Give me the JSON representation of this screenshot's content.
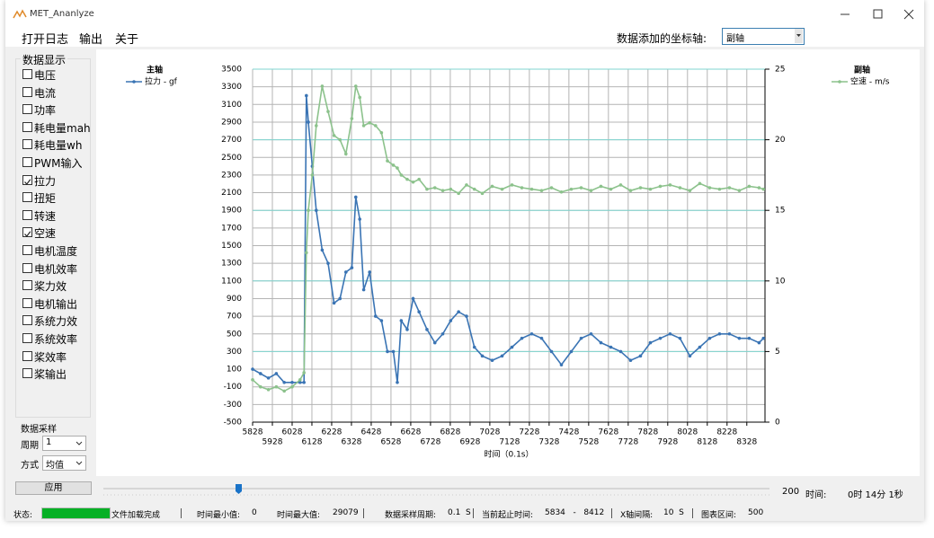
{
  "window": {
    "title": "MET_Ananlyze"
  },
  "menu": [
    "打开日志",
    "输出",
    "关于"
  ],
  "axis_selector": {
    "label": "数据添加的坐标轴:",
    "value": "副轴"
  },
  "sidebar": {
    "title": "数据显示",
    "items": [
      {
        "label": "电压",
        "checked": false
      },
      {
        "label": "电流",
        "checked": false
      },
      {
        "label": "功率",
        "checked": false
      },
      {
        "label": "耗电量mah",
        "checked": false
      },
      {
        "label": "耗电量wh",
        "checked": false
      },
      {
        "label": "PWM输入",
        "checked": false
      },
      {
        "label": "拉力",
        "checked": true
      },
      {
        "label": "扭矩",
        "checked": false
      },
      {
        "label": "转速",
        "checked": false
      },
      {
        "label": "空速",
        "checked": true
      },
      {
        "label": "电机温度",
        "checked": false
      },
      {
        "label": "电机效率",
        "checked": false
      },
      {
        "label": "桨力效",
        "checked": false
      },
      {
        "label": "电机输出",
        "checked": false
      },
      {
        "label": "系统力效",
        "checked": false
      },
      {
        "label": "系统效率",
        "checked": false
      },
      {
        "label": "桨效率",
        "checked": false
      },
      {
        "label": "桨输出",
        "checked": false
      }
    ]
  },
  "sampling": {
    "title": "数据采样",
    "period_label": "周期",
    "period_value": "1",
    "mode_label": "方式",
    "mode_value": "均值"
  },
  "apply_button": "应用",
  "slider": {
    "value": "200",
    "time_label": "时间:",
    "time_value": "0时 14分 1秒"
  },
  "status": {
    "label": "状态:",
    "message": "文件加载完成",
    "fields": [
      {
        "label": "时间最小值:",
        "value": "0"
      },
      {
        "label": "时间最大值:",
        "value": "29079"
      },
      {
        "label": "数据采样周期:",
        "value": "0.1  S"
      },
      {
        "label": "当前起止时间:",
        "value": "5834   -   8412"
      },
      {
        "label": "X轴间隔:",
        "value": "10  S"
      },
      {
        "label": "图表区间:",
        "value": "500"
      }
    ]
  },
  "chart_data": {
    "type": "line",
    "xlabel": "时间（0.1s）",
    "legend_left_title": "主轴",
    "legend_right_title": "副轴",
    "grid": true,
    "grid_color": "#b4b4b4",
    "y2_grid_color": "#7fd6d0",
    "xlim": [
      5828,
      8420
    ],
    "xticks": [
      5828,
      5928,
      6028,
      6128,
      6228,
      6328,
      6428,
      6528,
      6628,
      6728,
      6828,
      6928,
      7028,
      7128,
      7228,
      7328,
      7428,
      7528,
      7628,
      7728,
      7828,
      7928,
      8028,
      8128,
      8228,
      8328
    ],
    "ylim": [
      -500,
      3500
    ],
    "yticks": [
      -500,
      -300,
      -100,
      100,
      300,
      500,
      700,
      900,
      1100,
      1300,
      1500,
      1700,
      1900,
      2100,
      2300,
      2500,
      2700,
      2900,
      3100,
      3300,
      3500
    ],
    "y2lim": [
      0,
      25
    ],
    "y2ticks": [
      0,
      5,
      10,
      15,
      20,
      25
    ],
    "x": [
      5828,
      5868,
      5908,
      5948,
      5988,
      6028,
      6068,
      6088,
      6100,
      6110,
      6130,
      6150,
      6180,
      6210,
      6240,
      6270,
      6300,
      6330,
      6350,
      6370,
      6390,
      6420,
      6450,
      6480,
      6510,
      6540,
      6560,
      6580,
      6610,
      6640,
      6670,
      6710,
      6750,
      6790,
      6830,
      6870,
      6910,
      6950,
      6990,
      7040,
      7090,
      7140,
      7190,
      7240,
      7290,
      7340,
      7390,
      7440,
      7490,
      7540,
      7590,
      7640,
      7690,
      7740,
      7790,
      7840,
      7890,
      7940,
      7990,
      8040,
      8090,
      8140,
      8190,
      8240,
      8290,
      8340,
      8390,
      8412
    ],
    "series": [
      {
        "name": "拉力 - gf",
        "color": "#3a74b4",
        "axis": "y",
        "values": [
          100,
          50,
          0,
          50,
          -50,
          -50,
          -50,
          -50,
          3200,
          2900,
          2400,
          1900,
          1450,
          1300,
          850,
          900,
          1200,
          1250,
          2050,
          1800,
          1000,
          1200,
          700,
          650,
          300,
          300,
          -50,
          650,
          550,
          900,
          750,
          550,
          400,
          500,
          650,
          750,
          700,
          350,
          250,
          200,
          250,
          350,
          450,
          500,
          450,
          300,
          150,
          300,
          450,
          500,
          400,
          350,
          300,
          200,
          250,
          400,
          450,
          500,
          450,
          250,
          350,
          450,
          500,
          500,
          450,
          450,
          400,
          450
        ]
      },
      {
        "name": "空速 - m/s",
        "color": "#8cc28c",
        "axis": "y2",
        "values": [
          3,
          2.5,
          2.3,
          2.5,
          2.2,
          2.5,
          3,
          3.5,
          12,
          15,
          17.5,
          21,
          23.8,
          22,
          20.3,
          20,
          19,
          21.5,
          23.8,
          23,
          21,
          21.2,
          21,
          20.5,
          18.5,
          18.2,
          18,
          17.5,
          17.2,
          17,
          17.2,
          16.5,
          16.6,
          16.4,
          16.5,
          16.2,
          16.8,
          16.5,
          16.2,
          16.7,
          16.5,
          16.8,
          16.6,
          16.5,
          16.4,
          16.6,
          16.3,
          16.5,
          16.6,
          16.4,
          16.7,
          16.5,
          16.8,
          16.4,
          16.6,
          16.5,
          16.7,
          16.8,
          16.6,
          16.4,
          16.9,
          16.6,
          16.5,
          16.6,
          16.4,
          16.7,
          16.6,
          16.5
        ]
      }
    ]
  }
}
